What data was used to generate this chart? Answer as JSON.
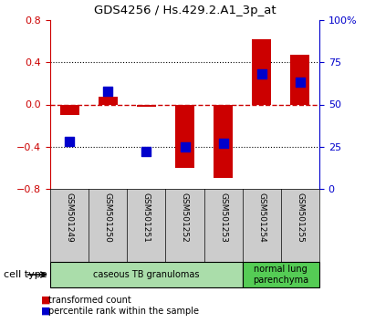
{
  "title": "GDS4256 / Hs.429.2.A1_3p_at",
  "samples": [
    "GSM501249",
    "GSM501250",
    "GSM501251",
    "GSM501252",
    "GSM501253",
    "GSM501254",
    "GSM501255"
  ],
  "transformed_count": [
    -0.1,
    0.07,
    -0.02,
    -0.6,
    -0.7,
    0.62,
    0.47
  ],
  "percentile_rank_raw": [
    28,
    58,
    22,
    25,
    27,
    68,
    63
  ],
  "ylim_left": [
    -0.8,
    0.8
  ],
  "ylim_right": [
    0,
    100
  ],
  "yticks_left": [
    -0.8,
    -0.4,
    0.0,
    0.4,
    0.8
  ],
  "yticks_right": [
    0,
    25,
    50,
    75,
    100
  ],
  "ytick_labels_right": [
    "0",
    "25",
    "50",
    "75",
    "100%"
  ],
  "bar_color": "#cc0000",
  "dot_color": "#0000cc",
  "zero_line_color": "#cc0000",
  "grid_color": "#000000",
  "cell_types": [
    {
      "label": "caseous TB granulomas",
      "indices": [
        0,
        1,
        2,
        3,
        4
      ],
      "color": "#aaddaa"
    },
    {
      "label": "normal lung\nparenchyma",
      "indices": [
        5,
        6
      ],
      "color": "#55cc55"
    }
  ],
  "legend_items": [
    {
      "label": "transformed count",
      "color": "#cc0000"
    },
    {
      "label": "percentile rank within the sample",
      "color": "#0000cc"
    }
  ],
  "cell_type_label": "cell type",
  "bar_width": 0.5,
  "dot_size": 55,
  "figsize": [
    4.0,
    3.54
  ],
  "dpi": 100
}
